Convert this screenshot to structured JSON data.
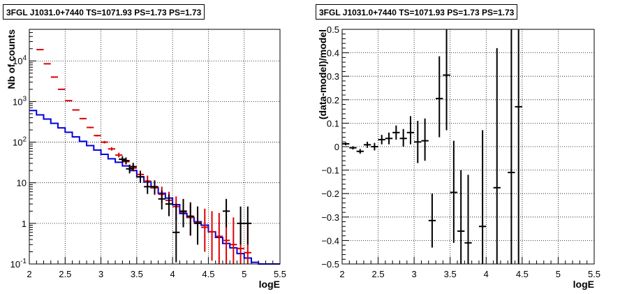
{
  "chart_data": [
    {
      "type": "histogram-errorbars",
      "title": "3FGL J1031.0+7440 TS=1071.93 PS=1.73 PS=1.73",
      "xlabel": "logE",
      "ylabel": "Nb of counts",
      "xlim": [
        2,
        5.5
      ],
      "ylim": [
        0.1,
        60000
      ],
      "yscale": "log",
      "grid": true,
      "x_ticks": [
        "2",
        "2.5",
        "3",
        "3.5",
        "4",
        "4.5",
        "5",
        "5.5"
      ],
      "y_ticks": [
        "10⁻¹",
        "1",
        "10",
        "10²",
        "10³",
        "10⁴"
      ],
      "series": [
        {
          "color": "#000000",
          "kind": "data",
          "points": [
            {
              "x": 3.3,
              "y": 38,
              "lo": 32,
              "hi": 45
            },
            {
              "x": 3.35,
              "y": 35,
              "lo": 29,
              "hi": 42
            },
            {
              "x": 3.4,
              "y": 22,
              "lo": 17,
              "hi": 28
            },
            {
              "x": 3.45,
              "y": 25,
              "lo": 20,
              "hi": 31
            },
            {
              "x": 3.55,
              "y": 14,
              "lo": 10,
              "hi": 19
            },
            {
              "x": 3.65,
              "y": 8,
              "lo": 5.3,
              "hi": 11.5
            },
            {
              "x": 3.75,
              "y": 8,
              "lo": 5.3,
              "hi": 11.5
            },
            {
              "x": 3.85,
              "y": 4,
              "lo": 2.2,
              "hi": 6.5
            },
            {
              "x": 3.95,
              "y": 3,
              "lo": 1.5,
              "hi": 5.2
            },
            {
              "x": 4.05,
              "y": 0.6,
              "lo": 0.11,
              "hi": 3.0
            },
            {
              "x": 4.15,
              "y": 2,
              "lo": 0.8,
              "hi": 4.0
            },
            {
              "x": 4.25,
              "y": 1.5,
              "lo": 0.5,
              "hi": 3.3
            },
            {
              "x": 4.35,
              "y": 1.0,
              "lo": 0.3,
              "hi": 2.6
            },
            {
              "x": 4.75,
              "y": 2.0,
              "lo": 0.8,
              "hi": 4.0
            },
            {
              "x": 4.95,
              "y": 1.0,
              "lo": 0.3,
              "hi": 2.6
            },
            {
              "x": 5.05,
              "y": 1.0,
              "lo": 0.3,
              "hi": 2.6
            }
          ]
        },
        {
          "color": "#dd0000",
          "kind": "model-points",
          "points": [
            {
              "x": 2.15,
              "y": 19000,
              "lo": 18500,
              "hi": 19500
            },
            {
              "x": 2.25,
              "y": 8500,
              "lo": 8300,
              "hi": 8700
            },
            {
              "x": 2.35,
              "y": 4000,
              "lo": 3900,
              "hi": 4100
            },
            {
              "x": 2.45,
              "y": 2000,
              "lo": 1950,
              "hi": 2050
            },
            {
              "x": 2.55,
              "y": 1050,
              "lo": 1020,
              "hi": 1080
            },
            {
              "x": 2.65,
              "y": 620,
              "lo": 600,
              "hi": 640
            },
            {
              "x": 2.75,
              "y": 380,
              "lo": 365,
              "hi": 395
            },
            {
              "x": 2.85,
              "y": 230,
              "lo": 220,
              "hi": 240
            },
            {
              "x": 2.95,
              "y": 145,
              "lo": 138,
              "hi": 152
            },
            {
              "x": 3.05,
              "y": 100,
              "lo": 93,
              "hi": 107
            },
            {
              "x": 3.15,
              "y": 68,
              "lo": 62,
              "hi": 75
            },
            {
              "x": 3.25,
              "y": 48,
              "lo": 42,
              "hi": 55
            },
            {
              "x": 3.35,
              "y": 33,
              "lo": 28,
              "hi": 39
            },
            {
              "x": 3.45,
              "y": 23,
              "lo": 19,
              "hi": 28
            },
            {
              "x": 3.55,
              "y": 16,
              "lo": 12,
              "hi": 20
            },
            {
              "x": 3.65,
              "y": 11,
              "lo": 8,
              "hi": 15
            },
            {
              "x": 3.75,
              "y": 7.5,
              "lo": 5,
              "hi": 10.5
            },
            {
              "x": 3.85,
              "y": 5.2,
              "lo": 3.2,
              "hi": 8
            },
            {
              "x": 3.95,
              "y": 3.7,
              "lo": 2.0,
              "hi": 6
            },
            {
              "x": 4.05,
              "y": 2.6,
              "lo": 1.2,
              "hi": 4.6
            },
            {
              "x": 4.15,
              "y": 1.9,
              "lo": 0.8,
              "hi": 3.7
            },
            {
              "x": 4.25,
              "y": 1.4,
              "lo": 0.5,
              "hi": 3.0
            },
            {
              "x": 4.35,
              "y": 1.05,
              "lo": 0.3,
              "hi": 2.6
            },
            {
              "x": 4.45,
              "y": 0.8,
              "lo": 0.2,
              "hi": 2.3
            },
            {
              "x": 4.55,
              "y": 0.62,
              "lo": 0.12,
              "hi": 2.0
            },
            {
              "x": 4.65,
              "y": 0.48,
              "lo": 0.1,
              "hi": 1.8
            },
            {
              "x": 4.75,
              "y": 0.38,
              "lo": 0.1,
              "hi": 1.6
            },
            {
              "x": 4.85,
              "y": 0.3,
              "lo": 0.1,
              "hi": 1.4
            },
            {
              "x": 4.95,
              "y": 0.24,
              "lo": 0.1,
              "hi": 1.2
            },
            {
              "x": 5.05,
              "y": 0.19,
              "lo": 0.1,
              "hi": 1.0
            }
          ]
        },
        {
          "color": "#0000dd",
          "kind": "step",
          "edges": [
            2.0,
            2.1,
            2.2,
            2.3,
            2.4,
            2.5,
            2.6,
            2.7,
            2.8,
            2.9,
            3.0,
            3.1,
            3.2,
            3.3,
            3.4,
            3.5,
            3.6,
            3.7,
            3.8,
            3.9,
            4.0,
            4.1,
            4.2,
            4.3,
            4.4,
            4.5,
            4.6,
            4.7,
            4.8,
            4.9,
            5.0,
            5.1,
            5.2,
            5.5
          ],
          "values": [
            600,
            470,
            370,
            290,
            225,
            175,
            135,
            105,
            82,
            64,
            50,
            39,
            32,
            26,
            20,
            14,
            10.5,
            7.5,
            5.5,
            4.2,
            2.9,
            1.75,
            1.4,
            1.1,
            0.9,
            0.62,
            0.45,
            0.32,
            0.25,
            0.18,
            0.14,
            0.11,
            0.1
          ]
        }
      ]
    },
    {
      "type": "scatter-errorbars",
      "title": "3FGL J1031.0+7440 TS=1071.93 PS=1.73 PS=1.73",
      "xlabel": "logE",
      "ylabel": "(data-model)/model",
      "xlim": [
        2,
        5.5
      ],
      "ylim": [
        -0.5,
        0.5
      ],
      "grid": true,
      "x_ticks": [
        "2",
        "2.5",
        "3",
        "3.5",
        "4",
        "4.5",
        "5",
        "5.5"
      ],
      "y_ticks": [
        "−0.5",
        "−0.4",
        "−0.3",
        "−0.2",
        "−0.1",
        "0",
        "0.1",
        "0.2",
        "0.3",
        "0.4",
        "0.5"
      ],
      "series": [
        {
          "color": "#000000",
          "points": [
            {
              "x": 2.05,
              "y": 0.012,
              "lo": 0.006,
              "hi": 0.018
            },
            {
              "x": 2.15,
              "y": -0.005,
              "lo": -0.012,
              "hi": 0.002
            },
            {
              "x": 2.25,
              "y": -0.02,
              "lo": -0.03,
              "hi": -0.01
            },
            {
              "x": 2.35,
              "y": 0.008,
              "lo": -0.005,
              "hi": 0.021
            },
            {
              "x": 2.45,
              "y": 0.0,
              "lo": -0.016,
              "hi": 0.016
            },
            {
              "x": 2.55,
              "y": 0.03,
              "lo": 0.01,
              "hi": 0.05
            },
            {
              "x": 2.65,
              "y": 0.035,
              "lo": 0.01,
              "hi": 0.06
            },
            {
              "x": 2.75,
              "y": 0.06,
              "lo": 0.03,
              "hi": 0.09
            },
            {
              "x": 2.85,
              "y": 0.035,
              "lo": 0.0,
              "hi": 0.075
            },
            {
              "x": 2.95,
              "y": 0.06,
              "lo": 0.01,
              "hi": 0.13
            },
            {
              "x": 3.05,
              "y": 0.02,
              "lo": -0.07,
              "hi": 0.11
            },
            {
              "x": 3.15,
              "y": 0.025,
              "lo": -0.06,
              "hi": 0.12
            },
            {
              "x": 3.25,
              "y": -0.315,
              "lo": -0.43,
              "hi": -0.2
            },
            {
              "x": 3.35,
              "y": 0.205,
              "lo": 0.04,
              "hi": 0.385
            },
            {
              "x": 3.45,
              "y": 0.305,
              "lo": 0.07,
              "hi": 0.5
            },
            {
              "x": 3.55,
              "y": -0.195,
              "lo": -0.41,
              "hi": 0.025
            },
            {
              "x": 3.65,
              "y": -0.36,
              "lo": -0.5,
              "hi": -0.1
            },
            {
              "x": 3.75,
              "y": -0.41,
              "lo": -0.5,
              "hi": -0.12
            },
            {
              "x": 3.95,
              "y": -0.34,
              "lo": -0.5,
              "hi": 0.07
            },
            {
              "x": 4.15,
              "y": -0.175,
              "lo": -0.5,
              "hi": 0.42
            },
            {
              "x": 4.35,
              "y": -0.11,
              "lo": -0.5,
              "hi": 0.5
            },
            {
              "x": 4.45,
              "y": 0.17,
              "lo": -0.5,
              "hi": 0.5
            }
          ]
        }
      ]
    }
  ]
}
